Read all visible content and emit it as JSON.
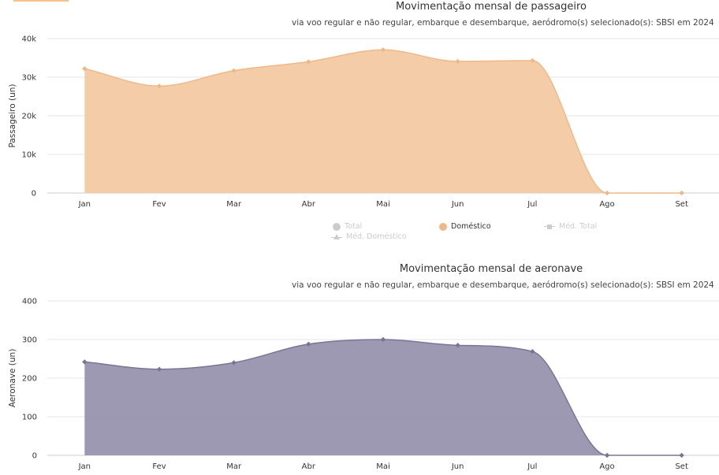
{
  "colors": {
    "accent": "#f5c28b",
    "passenger_fill": "#f4c9a3",
    "passenger_line": "#efb888",
    "aircraft_fill": "#9893ae",
    "aircraft_line": "#7a7594",
    "grid": "#e6e6e6",
    "axis_text": "#333333"
  },
  "legend": {
    "items": [
      {
        "label": "Total",
        "state": "hidden",
        "icon": "circle"
      },
      {
        "label": "Doméstico",
        "state": "visible",
        "icon": "circle"
      },
      {
        "label": "Méd. Total",
        "state": "hidden",
        "icon": "square-line"
      },
      {
        "label": "Méd. Doméstico",
        "state": "hidden",
        "icon": "triangle-line"
      }
    ]
  },
  "chart_data": [
    {
      "type": "area",
      "title": "Movimentação mensal de passageiro",
      "subtitle": "via voo regular e não regular, embarque e desembarque, aeródromo(s) selecionado(s): SBSI em 2024",
      "xlabel": "",
      "ylabel": "Passageiro (un)",
      "categories": [
        "Jan",
        "Fev",
        "Mar",
        "Abr",
        "Mai",
        "Jun",
        "Jul",
        "Ago",
        "Set"
      ],
      "yticks": [
        0,
        10000,
        20000,
        30000,
        40000
      ],
      "ytick_labels": [
        "0",
        "10k",
        "20k",
        "30k",
        "40k"
      ],
      "ylim": [
        0,
        40000
      ],
      "grid": true,
      "legend_position": "bottom",
      "series": [
        {
          "name": "Doméstico",
          "values": [
            32200,
            27700,
            31700,
            34000,
            37100,
            34100,
            34300,
            0,
            0
          ]
        }
      ]
    },
    {
      "type": "area",
      "title": "Movimentação mensal de aeronave",
      "subtitle": "via voo regular e não regular, embarque e desembarque, aeródromo(s) selecionado(s): SBSI em 2024",
      "xlabel": "",
      "ylabel": "Aeronave (un)",
      "categories": [
        "Jan",
        "Fev",
        "Mar",
        "Abr",
        "Mai",
        "Jun",
        "Jul",
        "Ago",
        "Set"
      ],
      "yticks": [
        0,
        100,
        200,
        300,
        400
      ],
      "ytick_labels": [
        "0",
        "100",
        "200",
        "300",
        "400"
      ],
      "ylim": [
        0,
        400
      ],
      "grid": true,
      "series": [
        {
          "values": [
            242,
            223,
            240,
            288,
            300,
            285,
            269,
            0,
            0
          ]
        }
      ]
    }
  ]
}
